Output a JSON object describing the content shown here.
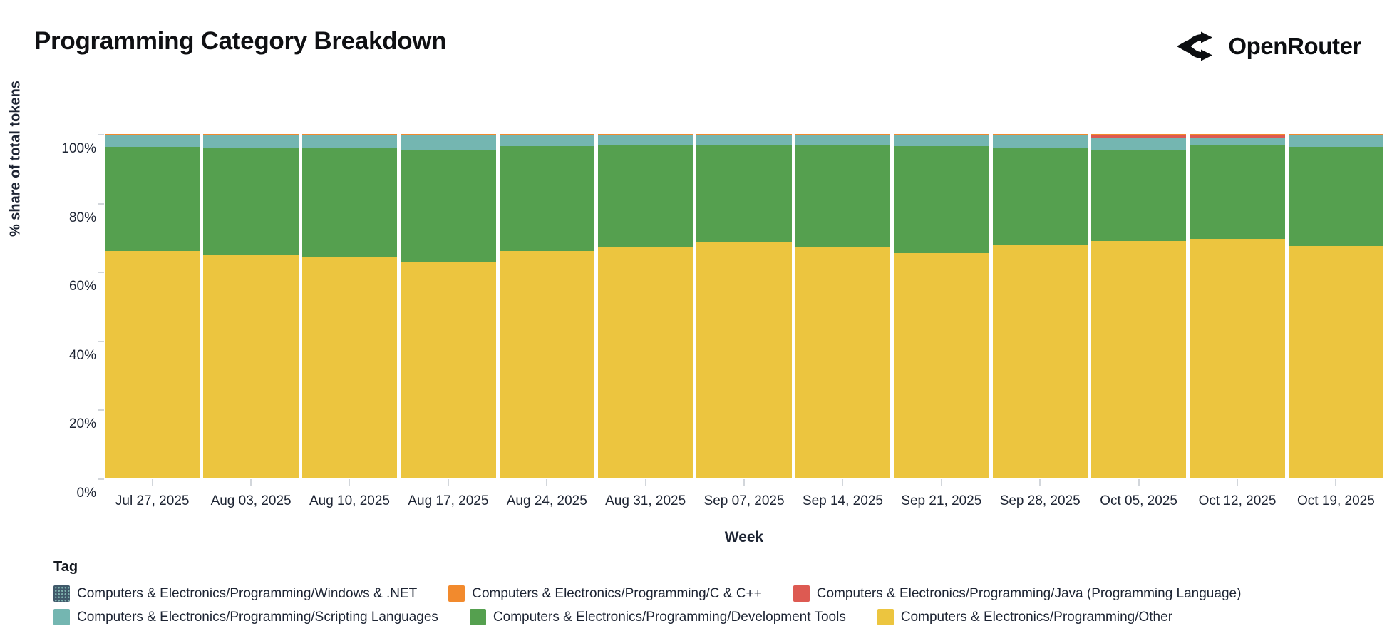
{
  "header": {
    "title": "Programming Category Breakdown",
    "brand": "OpenRouter"
  },
  "chart_data": {
    "type": "bar",
    "stacked": true,
    "normalized_percent": true,
    "title": "Programming Category Breakdown",
    "xlabel": "Week",
    "ylabel": "% share of total tokens",
    "ylim": [
      0,
      100
    ],
    "y_ticks": [
      "0%",
      "20%",
      "40%",
      "60%",
      "80%",
      "100%"
    ],
    "grid": false,
    "legend_position": "bottom",
    "legend_title": "Tag",
    "categories": [
      "Jul 27, 2025",
      "Aug 03, 2025",
      "Aug 10, 2025",
      "Aug 17, 2025",
      "Aug 24, 2025",
      "Aug 31, 2025",
      "Sep 07, 2025",
      "Sep 14, 2025",
      "Sep 21, 2025",
      "Sep 28, 2025",
      "Oct 05, 2025",
      "Oct 12, 2025",
      "Oct 19, 2025"
    ],
    "series": [
      {
        "name": "Computers & Electronics/Programming/Other",
        "color": "#ecc53f",
        "values": [
          66.0,
          65.0,
          64.2,
          63.0,
          66.0,
          67.2,
          68.5,
          67.0,
          65.5,
          68.0,
          69.0,
          69.5,
          67.5
        ]
      },
      {
        "name": "Computers & Electronics/Programming/Development Tools",
        "color": "#55a04f",
        "values": [
          30.2,
          31.0,
          31.8,
          32.4,
          30.4,
          29.7,
          28.1,
          29.9,
          30.9,
          28.0,
          26.2,
          27.2,
          28.8
        ]
      },
      {
        "name": "Computers & Electronics/Programming/Scripting Languages",
        "color": "#74b6b1",
        "values": [
          3.5,
          3.7,
          3.7,
          4.3,
          3.3,
          2.8,
          3.1,
          2.8,
          3.3,
          3.7,
          3.5,
          2.3,
          3.4
        ]
      },
      {
        "name": "Computers & Electronics/Programming/Java (Programming Language)",
        "color": "#dd5a52",
        "values": [
          0,
          0,
          0,
          0,
          0,
          0,
          0,
          0,
          0,
          0,
          1.2,
          0.9,
          0
        ]
      },
      {
        "name": "Computers & Electronics/Programming/C & C++",
        "color": "#f28a2d",
        "values": [
          0.25,
          0.25,
          0.25,
          0.25,
          0.25,
          0.25,
          0.25,
          0.25,
          0.25,
          0.25,
          0.05,
          0.05,
          0.25
        ]
      },
      {
        "name": "Computers & Electronics/Programming/Windows & .NET",
        "color": "#40596a",
        "values": [
          0.05,
          0.05,
          0.05,
          0.05,
          0.05,
          0.05,
          0.05,
          0.05,
          0.05,
          0.05,
          0.05,
          0.05,
          0.05
        ]
      }
    ]
  },
  "legend": {
    "title": "Tag",
    "rows": [
      [
        {
          "label": "Computers & Electronics/Programming/Windows & .NET",
          "color": "#40596a",
          "patterned": true
        },
        {
          "label": "Computers & Electronics/Programming/C & C++",
          "color": "#f28a2d",
          "patterned": false
        },
        {
          "label": "Computers & Electronics/Programming/Java (Programming Language)",
          "color": "#dd5a52",
          "patterned": false
        }
      ],
      [
        {
          "label": "Computers & Electronics/Programming/Scripting Languages",
          "color": "#74b6b1",
          "patterned": false
        },
        {
          "label": "Computers & Electronics/Programming/Development Tools",
          "color": "#55a04f",
          "patterned": false
        },
        {
          "label": "Computers & Electronics/Programming/Other",
          "color": "#ecc53f",
          "patterned": false
        }
      ]
    ]
  }
}
